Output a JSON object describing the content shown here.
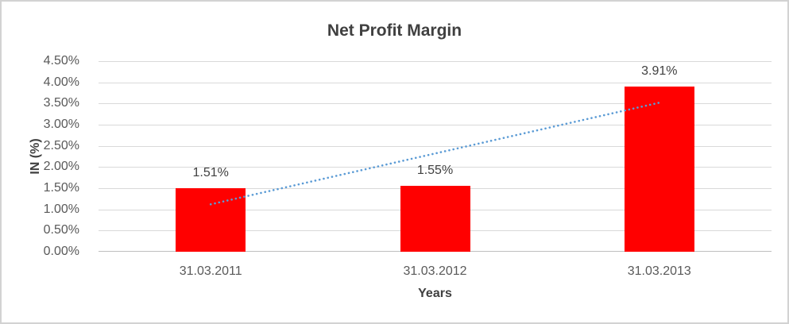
{
  "chart_data": {
    "type": "bar",
    "title": "Net Profit Margin",
    "categories": [
      "31.03.2011",
      "31.03.2012",
      "31.03.2013"
    ],
    "values": [
      1.51,
      1.55,
      3.91
    ],
    "data_labels": [
      "1.51%",
      "1.55%",
      "3.91%"
    ],
    "xlabel": "Years",
    "ylabel": "IN (%)",
    "ylim": [
      0,
      4.5
    ],
    "ytick_step": 0.5,
    "ytick_labels": [
      "4.50%",
      "4.00%",
      "3.50%",
      "3.00%",
      "2.50%",
      "2.00%",
      "1.50%",
      "1.00%",
      "0.50%",
      "0.00%"
    ],
    "grid": true,
    "legend": "none",
    "trendline": {
      "type": "linear",
      "style": "dotted",
      "start_value": 1.12,
      "end_value": 3.52
    }
  },
  "colors": {
    "bar": "#FF0000",
    "trendline": "#5B9BD5",
    "gridline": "#D9D9D9",
    "axis_line": "#BFBFBF",
    "title_text": "#404040",
    "tick_text": "#595959",
    "frame_border": "#D2D2D2",
    "background": "#FFFFFF"
  }
}
